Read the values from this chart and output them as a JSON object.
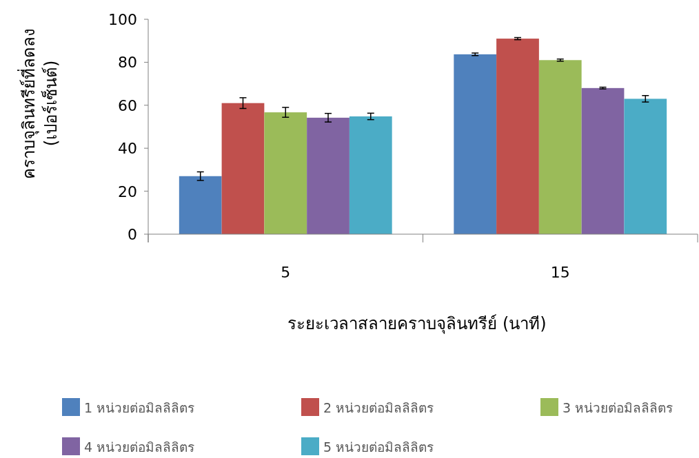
{
  "chart_data": {
    "type": "bar",
    "xlabel": "ระยะเวลาสลายคราบจุลินทรีย์ (นาที)",
    "ylabel": "คราบจุลินทรีย์ที่ลดลง (เปอร์เซ็นต์)",
    "categories": [
      "5",
      "15"
    ],
    "ylim": [
      0,
      100
    ],
    "yticks": [
      0,
      20,
      40,
      60,
      80,
      100
    ],
    "grid": false,
    "legend": "bottom",
    "series": [
      {
        "name": "1 หน่วยต่อมิลลิลิตร",
        "color": "#4f81bd",
        "values": [
          27,
          83.7
        ],
        "errors": [
          2,
          0.6
        ]
      },
      {
        "name": "2 หน่วยต่อมิลลิลิตร",
        "color": "#c0504d",
        "values": [
          61,
          91
        ],
        "errors": [
          2.5,
          0.5
        ]
      },
      {
        "name": "3 หน่วยต่อมิลลิลิตร",
        "color": "#9bbb59",
        "values": [
          56.7,
          81
        ],
        "errors": [
          2.3,
          0.5
        ]
      },
      {
        "name": "4 หน่วยต่อมิลลิลิตร",
        "color": "#8064a2",
        "values": [
          54.2,
          68
        ],
        "errors": [
          2,
          0.4
        ]
      },
      {
        "name": "5 หน่วยต่อมิลลิลิตร",
        "color": "#4bacc6",
        "values": [
          54.8,
          63
        ],
        "errors": [
          1.5,
          1.5
        ]
      }
    ]
  }
}
